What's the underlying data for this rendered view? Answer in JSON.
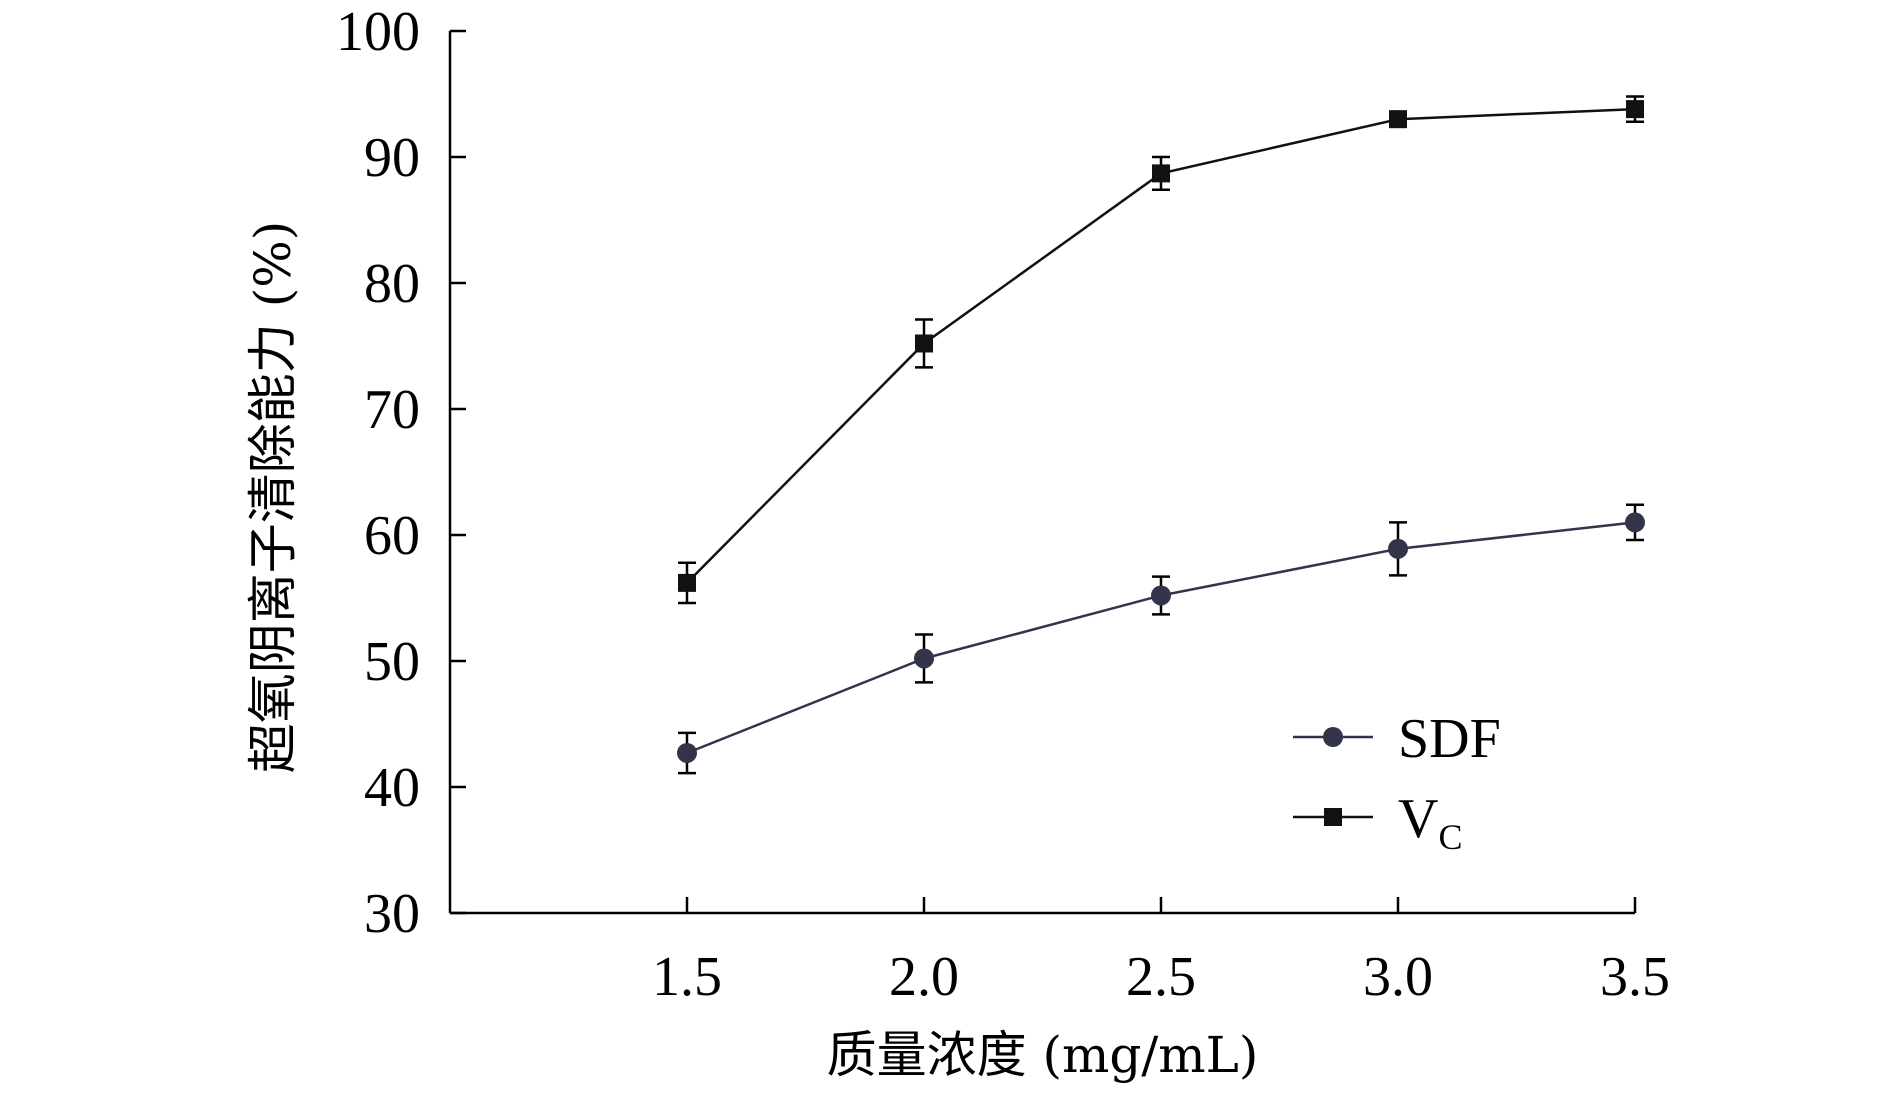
{
  "chart_data": {
    "type": "line",
    "x": [
      1.5,
      2.0,
      2.5,
      3.0,
      3.5
    ],
    "x_tick_labels": [
      "1.5",
      "2.0",
      "2.5",
      "3.0",
      "3.5"
    ],
    "xlabel": "质量浓度 (mg/mL)",
    "ylabel": "超氧阴离子清除能力 (%)",
    "xlim": [
      1.0,
      3.5
    ],
    "ylim": [
      30,
      100
    ],
    "y_ticks": [
      30,
      40,
      50,
      60,
      70,
      80,
      90,
      100
    ],
    "y_tick_labels": [
      "30",
      "40",
      "50",
      "60",
      "70",
      "80",
      "90",
      "100"
    ],
    "grid": false,
    "legend_position": "bottom-right",
    "series": [
      {
        "name": "SDF",
        "marker": "circle",
        "color": "#33334a",
        "values": [
          42.7,
          50.2,
          55.2,
          58.9,
          61.0
        ],
        "errors": [
          1.6,
          1.9,
          1.5,
          2.1,
          1.4
        ]
      },
      {
        "name": "VC",
        "name_main": "V",
        "name_sub": "C",
        "marker": "square",
        "color": "#111111",
        "values": [
          56.2,
          75.2,
          88.7,
          93.0,
          93.8
        ],
        "errors": [
          1.6,
          1.9,
          1.3,
          0.6,
          1.0
        ]
      }
    ]
  }
}
